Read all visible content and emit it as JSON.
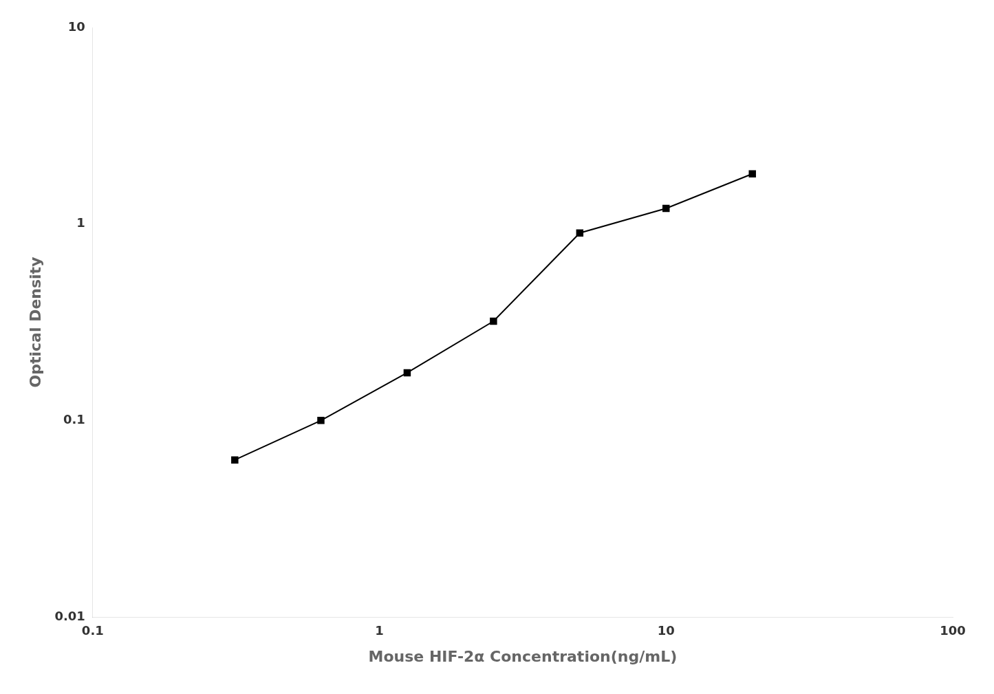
{
  "chart_data": {
    "type": "line",
    "x": [
      0.313,
      0.625,
      1.25,
      2.5,
      5.0,
      10.0,
      20.0
    ],
    "values": [
      0.063,
      0.1,
      0.175,
      0.32,
      0.9,
      1.2,
      1.8
    ],
    "xlabel": "Mouse HIF-2α Concentration(ng/mL)",
    "ylabel": "Optical Density",
    "xlim": [
      0.1,
      100
    ],
    "ylim": [
      0.01,
      10
    ],
    "xticks": [
      0.1,
      1,
      10,
      100
    ],
    "yticks": [
      0.01,
      0.1,
      1,
      10
    ],
    "log": true,
    "grid": false,
    "color": "#000000",
    "marker": "square",
    "line_style": "solid"
  }
}
